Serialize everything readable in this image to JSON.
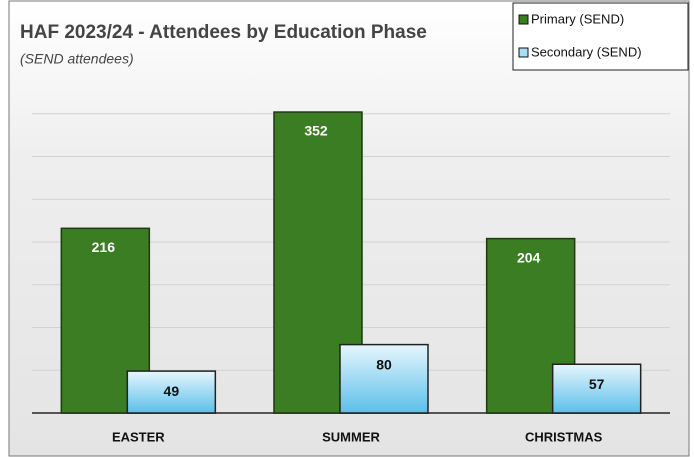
{
  "chart_data": {
    "type": "bar",
    "title": "HAF 2023/24 - Attendees by Education Phase",
    "subtitle": "(SEND attendees)",
    "categories": [
      "EASTER",
      "SUMMER",
      "CHRISTMAS"
    ],
    "series": [
      {
        "name": "Primary (SEND)",
        "color": "#3a7d22",
        "values": [
          216,
          352,
          204
        ]
      },
      {
        "name": "Secondary (SEND)",
        "color": "#5bbfea",
        "values": [
          49,
          80,
          57
        ]
      }
    ],
    "ylim": [
      0,
      400
    ],
    "yticks": [
      0,
      50,
      100,
      150,
      200,
      250,
      300,
      350
    ],
    "grid": true,
    "legend": "top-right"
  }
}
